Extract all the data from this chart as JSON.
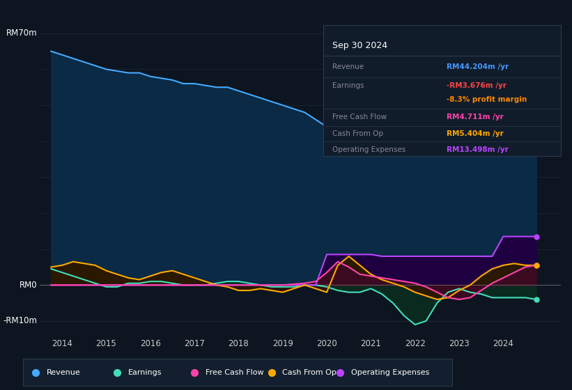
{
  "bg_color": "#0d1520",
  "plot_bg_color": "#0d1520",
  "title": "Sep 30 2024",
  "info_box": {
    "bg_color": "#111c2b",
    "border_color": "#2a3a4a",
    "title_color": "#ffffff",
    "label_color": "#888899",
    "rows": [
      {
        "label": "Revenue",
        "value": "RM44.204m /yr",
        "value_color": "#4499ff"
      },
      {
        "label": "Earnings",
        "value": "-RM3.676m /yr",
        "value_color": "#ff4444"
      },
      {
        "label": "",
        "value": "-8.3% profit margin",
        "value_color": "#ff8800"
      },
      {
        "label": "Free Cash Flow",
        "value": "RM4.711m /yr",
        "value_color": "#ff44aa"
      },
      {
        "label": "Cash From Op",
        "value": "RM5.404m /yr",
        "value_color": "#ffaa00"
      },
      {
        "label": "Operating Expenses",
        "value": "RM13.498m /yr",
        "value_color": "#bb44ff"
      }
    ]
  },
  "ylim": [
    -14,
    76
  ],
  "xlim": [
    2013.5,
    2025.3
  ],
  "xticks": [
    2014,
    2015,
    2016,
    2017,
    2018,
    2019,
    2020,
    2021,
    2022,
    2023,
    2024
  ],
  "grid_color": "#1a2535",
  "zero_line_color": "#888888",
  "legend": [
    {
      "label": "Revenue",
      "color": "#44aaff"
    },
    {
      "label": "Earnings",
      "color": "#44ddbb"
    },
    {
      "label": "Free Cash Flow",
      "color": "#ff44aa"
    },
    {
      "label": "Cash From Op",
      "color": "#ffaa00"
    },
    {
      "label": "Operating Expenses",
      "color": "#bb44ff"
    }
  ],
  "revenue": {
    "x": [
      2013.75,
      2014.0,
      2014.5,
      2015.0,
      2015.5,
      2015.75,
      2016.0,
      2016.5,
      2016.75,
      2017.0,
      2017.5,
      2017.75,
      2018.0,
      2018.5,
      2018.75,
      2019.0,
      2019.5,
      2019.75,
      2020.0,
      2020.25,
      2020.5,
      2020.75,
      2021.0,
      2021.25,
      2021.5,
      2021.75,
      2022.0,
      2022.25,
      2022.5,
      2022.75,
      2023.0,
      2023.25,
      2023.5,
      2023.75,
      2024.0,
      2024.25,
      2024.5,
      2024.75
    ],
    "y": [
      65,
      64,
      62,
      60,
      59,
      59,
      58,
      57,
      56,
      56,
      55,
      55,
      54,
      52,
      51,
      50,
      48,
      46,
      44,
      43,
      42,
      41,
      41,
      41,
      40,
      40,
      38,
      36,
      37,
      39,
      42,
      43,
      42,
      41,
      39,
      38,
      44,
      44
    ],
    "color": "#44aaff",
    "fill_color": "#0a2a45",
    "fill_alpha": 1.0
  },
  "earnings": {
    "x": [
      2013.75,
      2014.0,
      2014.25,
      2014.5,
      2014.75,
      2015.0,
      2015.25,
      2015.5,
      2015.75,
      2016.0,
      2016.25,
      2016.5,
      2016.75,
      2017.0,
      2017.25,
      2017.5,
      2017.75,
      2018.0,
      2018.25,
      2018.5,
      2018.75,
      2019.0,
      2019.25,
      2019.5,
      2019.75,
      2020.0,
      2020.25,
      2020.5,
      2020.75,
      2021.0,
      2021.25,
      2021.5,
      2021.75,
      2022.0,
      2022.25,
      2022.5,
      2022.75,
      2023.0,
      2023.25,
      2023.5,
      2023.75,
      2024.0,
      2024.25,
      2024.5,
      2024.75
    ],
    "y": [
      4.5,
      3.5,
      2.5,
      1.5,
      0.5,
      -0.5,
      -0.5,
      0.5,
      0.5,
      1.0,
      1.0,
      0.5,
      0.0,
      0.0,
      0.0,
      0.5,
      1.0,
      1.0,
      0.5,
      0.0,
      -0.5,
      -0.5,
      -0.5,
      0.0,
      0.0,
      -0.5,
      -1.5,
      -2.0,
      -2.0,
      -1.0,
      -2.5,
      -5.0,
      -8.5,
      -11.0,
      -10.0,
      -5.0,
      -2.0,
      -1.0,
      -2.0,
      -2.5,
      -3.5,
      -3.5,
      -3.5,
      -3.5,
      -4.0
    ],
    "color": "#44ddbb",
    "fill_color": "#0a2a20",
    "fill_alpha": 1.0
  },
  "cash_from_op": {
    "x": [
      2013.75,
      2014.0,
      2014.25,
      2014.5,
      2014.75,
      2015.0,
      2015.25,
      2015.5,
      2015.75,
      2016.0,
      2016.25,
      2016.5,
      2016.75,
      2017.0,
      2017.25,
      2017.5,
      2017.75,
      2018.0,
      2018.25,
      2018.5,
      2018.75,
      2019.0,
      2019.25,
      2019.5,
      2019.75,
      2020.0,
      2020.25,
      2020.5,
      2020.75,
      2021.0,
      2021.25,
      2021.5,
      2021.75,
      2022.0,
      2022.25,
      2022.5,
      2022.75,
      2023.0,
      2023.25,
      2023.5,
      2023.75,
      2024.0,
      2024.25,
      2024.5,
      2024.75
    ],
    "y": [
      5.0,
      5.5,
      6.5,
      6.0,
      5.5,
      4.0,
      3.0,
      2.0,
      1.5,
      2.5,
      3.5,
      4.0,
      3.0,
      2.0,
      1.0,
      0.0,
      -0.5,
      -1.5,
      -1.5,
      -1.0,
      -1.5,
      -2.0,
      -1.0,
      0.0,
      -1.0,
      -2.0,
      5.5,
      8.0,
      5.5,
      3.0,
      1.5,
      0.5,
      -0.5,
      -2.0,
      -3.0,
      -4.0,
      -3.5,
      -1.5,
      0.0,
      2.5,
      4.5,
      5.5,
      6.0,
      5.5,
      5.5
    ],
    "color": "#ffaa00",
    "fill_color": "#2a1800",
    "fill_alpha": 1.0
  },
  "free_cash_flow": {
    "x": [
      2013.75,
      2014.0,
      2014.5,
      2015.0,
      2015.5,
      2016.0,
      2016.5,
      2017.0,
      2017.5,
      2018.0,
      2018.5,
      2019.0,
      2019.5,
      2019.75,
      2020.0,
      2020.25,
      2020.5,
      2020.75,
      2021.0,
      2021.25,
      2021.5,
      2021.75,
      2022.0,
      2022.25,
      2022.5,
      2022.75,
      2023.0,
      2023.25,
      2023.5,
      2023.75,
      2024.0,
      2024.25,
      2024.5,
      2024.75
    ],
    "y": [
      0,
      0,
      0,
      0,
      0,
      0,
      0,
      0,
      0,
      0,
      0,
      0.0,
      0.5,
      1.0,
      3.5,
      6.5,
      5.0,
      3.0,
      2.5,
      2.0,
      1.5,
      1.0,
      0.5,
      -0.5,
      -2.0,
      -3.5,
      -4.0,
      -3.5,
      -1.5,
      0.5,
      2.0,
      3.5,
      5.0,
      5.5
    ],
    "color": "#ff44aa",
    "fill_color": "#3a0a20",
    "fill_alpha": 1.0
  },
  "operating_expenses": {
    "x": [
      2013.75,
      2019.5,
      2019.75,
      2020.0,
      2020.25,
      2020.5,
      2020.75,
      2021.0,
      2021.25,
      2021.5,
      2021.75,
      2022.0,
      2022.25,
      2022.5,
      2022.75,
      2023.0,
      2023.25,
      2023.5,
      2023.75,
      2024.0,
      2024.25,
      2024.5,
      2024.75
    ],
    "y": [
      0,
      0,
      0,
      8.5,
      8.5,
      8.5,
      8.5,
      8.5,
      8.0,
      8.0,
      8.0,
      8.0,
      8.0,
      8.0,
      8.0,
      8.0,
      8.0,
      8.0,
      8.0,
      13.5,
      13.5,
      13.5,
      13.5
    ],
    "color": "#bb44ff",
    "fill_color": "#1e0040",
    "fill_alpha": 1.0
  }
}
